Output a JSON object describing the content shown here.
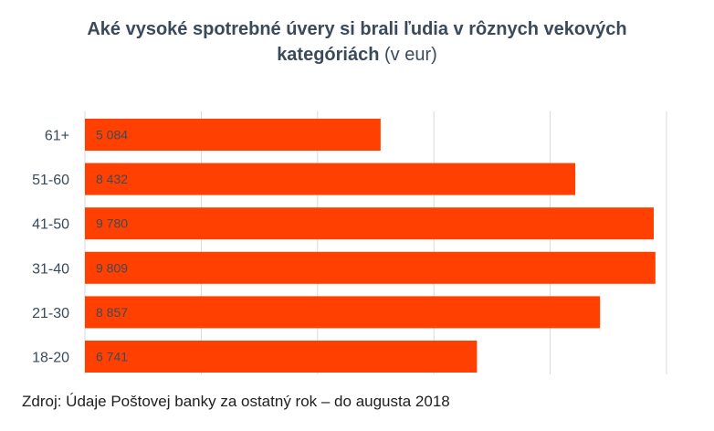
{
  "chart_data": {
    "type": "bar",
    "orientation": "horizontal",
    "title": "Aké vysoké spotrebné úvery si brali ľudia v rôznych vekových kategóriách",
    "title_unit": "(v eur)",
    "categories": [
      "61+",
      "51-60",
      "41-50",
      "31-40",
      "21-30",
      "18-20"
    ],
    "values": [
      5084,
      8432,
      9780,
      9809,
      8857,
      6741
    ],
    "value_labels": [
      "5 084",
      "8 432",
      "9 780",
      "9 809",
      "8 857",
      "6 741"
    ],
    "xlim": [
      0,
      10000
    ],
    "grid": true,
    "bar_color": "#ff4000",
    "label_color": "#3d4a5a",
    "grid_color": "#d9d9d9"
  },
  "title_part1": "Aké vysoké spotrebné úvery si brali ľudia v rôznych vekových",
  "title_part2": "kategóriách",
  "title_unit": "(v eur)",
  "source": "Zdroj: Údaje Poštovej banky za ostatný rok – do augusta 2018"
}
